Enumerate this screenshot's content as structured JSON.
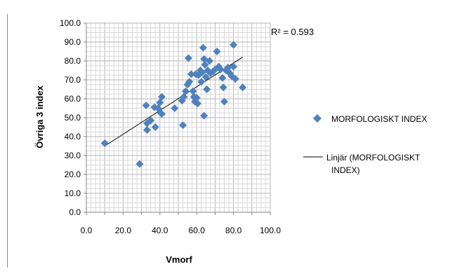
{
  "chart_data": {
    "type": "scatter",
    "xlabel": "Vmorf",
    "ylabel": "Övriga 3 index",
    "xlim": [
      0,
      100
    ],
    "ylim": [
      0,
      100
    ],
    "xticks": [
      "0.0",
      "20.0",
      "40.0",
      "60.0",
      "80.0",
      "100.0"
    ],
    "yticks": [
      "0.0",
      "10.0",
      "20.0",
      "30.0",
      "40.0",
      "50.0",
      "60.0",
      "70.0",
      "80.0",
      "90.0",
      "100.0"
    ],
    "grid": true,
    "legend_position": "right",
    "r2_label": "R² = 0.593",
    "series": [
      {
        "name": "MORFOLOGISKT INDEX",
        "marker": "diamond",
        "color": "#4f81bd",
        "points": [
          [
            10,
            36.5
          ],
          [
            29,
            25.5
          ],
          [
            32.5,
            56.5
          ],
          [
            33,
            47
          ],
          [
            33,
            43.5
          ],
          [
            35,
            48.5
          ],
          [
            37,
            55.5
          ],
          [
            37.5,
            45
          ],
          [
            39,
            55
          ],
          [
            40,
            58
          ],
          [
            40.5,
            52.5
          ],
          [
            41,
            61
          ],
          [
            41,
            52
          ],
          [
            48,
            55
          ],
          [
            52,
            59
          ],
          [
            52.5,
            46
          ],
          [
            53,
            61
          ],
          [
            54,
            64
          ],
          [
            55,
            67.5
          ],
          [
            55.5,
            81.5
          ],
          [
            56,
            69
          ],
          [
            57,
            73
          ],
          [
            58,
            64
          ],
          [
            58.5,
            61
          ],
          [
            59,
            58.5
          ],
          [
            59.5,
            73
          ],
          [
            60,
            60.5
          ],
          [
            60.5,
            57.5
          ],
          [
            61,
            72.5
          ],
          [
            62,
            75
          ],
          [
            62.5,
            69
          ],
          [
            63,
            74
          ],
          [
            63.5,
            87
          ],
          [
            64,
            81
          ],
          [
            64.5,
            78
          ],
          [
            64,
            51
          ],
          [
            65,
            71.5
          ],
          [
            65.5,
            65
          ],
          [
            66,
            75
          ],
          [
            67,
            80
          ],
          [
            67.5,
            73.5
          ],
          [
            69,
            74.5
          ],
          [
            70,
            75.5
          ],
          [
            71,
            85
          ],
          [
            72,
            77
          ],
          [
            73,
            75.5
          ],
          [
            74,
            71
          ],
          [
            74.5,
            66
          ],
          [
            75,
            58.5
          ],
          [
            76,
            75
          ],
          [
            77,
            76.5
          ],
          [
            78,
            73.5
          ],
          [
            79,
            72
          ],
          [
            80,
            77
          ],
          [
            80,
            88.5
          ],
          [
            81,
            70.5
          ],
          [
            85,
            66
          ]
        ]
      },
      {
        "name": "Linjär (MORFOLOGISKT INDEX)",
        "type": "trendline",
        "color": "#000000",
        "x": [
          10,
          85
        ],
        "y": [
          35,
          82
        ]
      }
    ]
  }
}
